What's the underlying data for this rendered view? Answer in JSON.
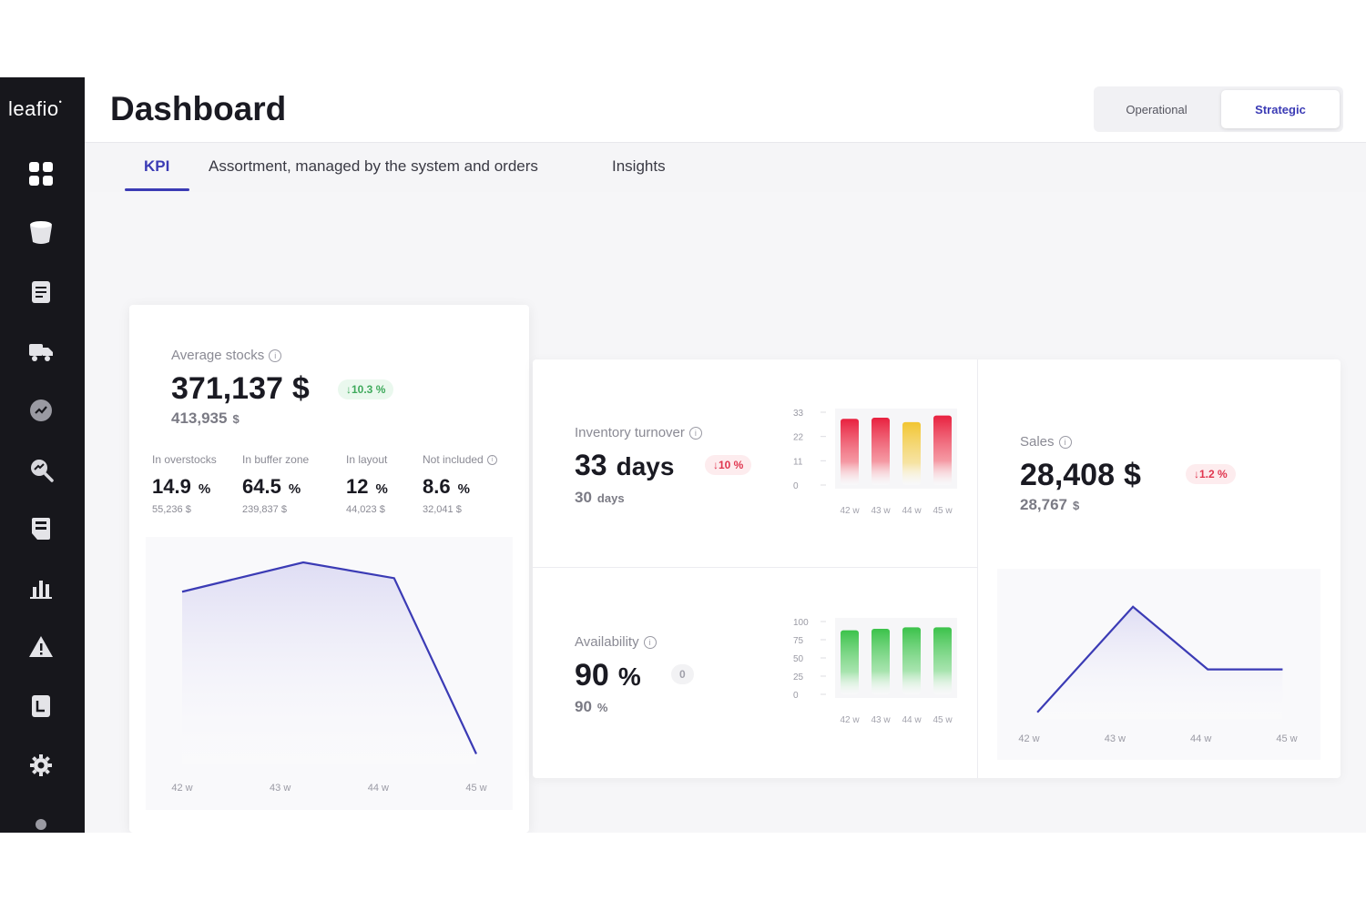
{
  "app": {
    "logo": "leafio",
    "logo_mark": "•"
  },
  "sidebar": {
    "items": [
      {
        "icon": "dashboard-icon"
      },
      {
        "icon": "database-icon"
      },
      {
        "icon": "document-icon"
      },
      {
        "icon": "truck-icon"
      },
      {
        "icon": "chart-circle-icon"
      },
      {
        "icon": "search-analytics-icon"
      },
      {
        "icon": "store-icon"
      },
      {
        "icon": "bar-chart-icon"
      },
      {
        "icon": "warning-icon"
      },
      {
        "icon": "report-icon"
      },
      {
        "icon": "settings-icon"
      },
      {
        "icon": "dot-icon"
      }
    ]
  },
  "header": {
    "title": "Dashboard",
    "modes": {
      "operational": "Operational",
      "strategic": "Strategic",
      "active": "strategic"
    }
  },
  "tabs": {
    "items": [
      {
        "label": "KPI",
        "active": true
      },
      {
        "label": "Assortment, managed by the system and orders"
      },
      {
        "label": "Insights"
      }
    ]
  },
  "colors": {
    "accent": "#3b3bb5",
    "up": "#3faa5c",
    "down": "#e0364f",
    "bar_red": "#e8213f",
    "bar_yellow": "#f2c531",
    "bar_green": "#3bc24a"
  },
  "average_stocks": {
    "label": "Average stocks",
    "value": "371,137",
    "unit": "$",
    "badge": "↓10.3 %",
    "previous": "413,935",
    "previous_unit": "$",
    "breakdown": [
      {
        "label": "In overstocks",
        "value": "14.9",
        "unit": "%",
        "abs": "55,236 $"
      },
      {
        "label": "In buffer zone",
        "value": "64.5",
        "unit": "%",
        "abs": "239,837 $"
      },
      {
        "label": "In layout",
        "value": "12",
        "unit": "%",
        "abs": "44,023 $"
      },
      {
        "label": "Not included",
        "value": "8.6",
        "unit": "%",
        "abs": "32,041 $"
      }
    ]
  },
  "inventory_turnover": {
    "label": "Inventory turnover",
    "value": "33",
    "unit": "days",
    "badge": "↓10 %",
    "previous": "30",
    "previous_unit": "days"
  },
  "availability": {
    "label": "Availability",
    "value": "90",
    "unit": "%",
    "badge": "0",
    "previous": "90",
    "previous_unit": "%"
  },
  "sales": {
    "label": "Sales",
    "value": "28,408",
    "unit": "$",
    "badge": "↓1.2 %",
    "previous": "28,767",
    "previous_unit": "$"
  },
  "chart_data": [
    {
      "id": "average-stocks-chart",
      "type": "area",
      "categories": [
        "42 w",
        "43 w",
        "44 w",
        "45 w"
      ],
      "values": [
        385000,
        413000,
        398000,
        230000
      ],
      "point_x": [
        41.6,
        43,
        44.05,
        45
      ],
      "grid": false,
      "line_color": "#3b3bb5"
    },
    {
      "id": "inventory-turnover-chart",
      "type": "bar",
      "categories": [
        "42 w",
        "43 w",
        "44 w",
        "45 w"
      ],
      "values": [
        30,
        30.5,
        28.5,
        31.5
      ],
      "bar_colors": [
        "red",
        "red",
        "yellow",
        "red"
      ],
      "y_ticks": [
        "33",
        "22",
        "11",
        "0"
      ],
      "ylim": [
        0,
        33
      ],
      "grid": false
    },
    {
      "id": "availability-chart",
      "type": "bar",
      "categories": [
        "42 w",
        "43 w",
        "44 w",
        "45 w"
      ],
      "values": [
        88,
        90,
        92,
        92
      ],
      "bar_colors": [
        "green",
        "green",
        "green",
        "green"
      ],
      "y_ticks": [
        "100",
        "75",
        "50",
        "25",
        "0"
      ],
      "ylim": [
        0,
        100
      ],
      "grid": false
    },
    {
      "id": "sales-chart",
      "type": "area",
      "categories": [
        "42 w",
        "43 w",
        "44 w",
        "45 w"
      ],
      "values": [
        27000,
        30200,
        28300,
        28300
      ],
      "point_x": [
        42,
        43.15,
        44.05,
        44.95
      ],
      "grid": false,
      "line_color": "#3b3bb5"
    }
  ]
}
